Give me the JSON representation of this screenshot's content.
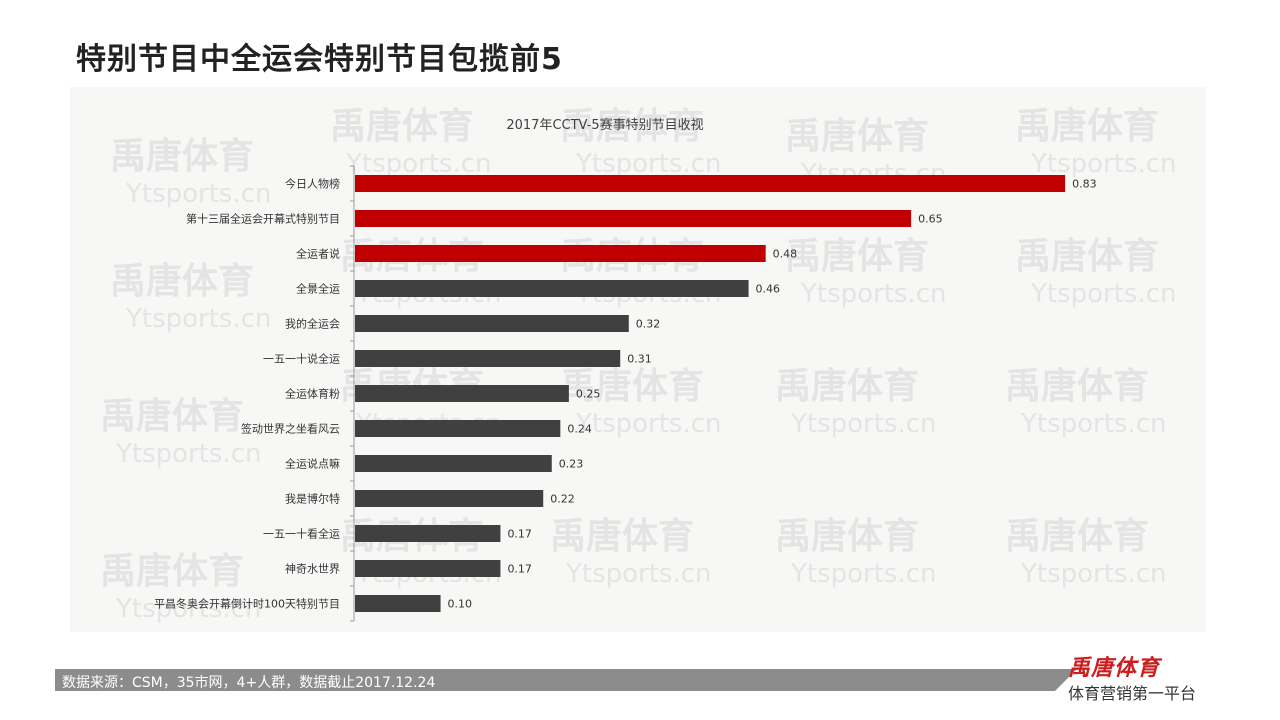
{
  "page": {
    "title": "特别节目中全运会特别节目包揽前5",
    "footer_source": "数据来源：CSM，35市网，4+人群，数据截止2017.12.24",
    "logo_text": "禹唐体育",
    "logo_tagline": "体育营销第一平台"
  },
  "watermark": {
    "cn": "禹唐体育",
    "en": "Ytsports.cn"
  },
  "colors": {
    "highlight": "#c00000",
    "normal": "#404040",
    "panel": "#f7f8f6"
  },
  "chart_data": {
    "type": "bar",
    "orientation": "horizontal",
    "title": "2017年CCTV-5赛事特别节目收视",
    "categories": [
      "今日人物榜",
      "第十三届全运会开幕式特别节目",
      "全运者说",
      "全景全运",
      "我的全运会",
      "一五一十说全运",
      "全运体育粉",
      "签动世界之坐看风云",
      "全运说点嘛",
      "我是博尔特",
      "一五一十看全运",
      "神奇水世界",
      "平昌冬奥会开幕倒计时100天特别节目"
    ],
    "values": [
      0.83,
      0.65,
      0.48,
      0.46,
      0.32,
      0.31,
      0.25,
      0.24,
      0.23,
      0.22,
      0.17,
      0.17,
      0.1
    ],
    "value_labels": [
      "0.83",
      "0.65",
      "0.48",
      "0.46",
      "0.32",
      "0.31",
      "0.25",
      "0.24",
      "0.23",
      "0.22",
      "0.17",
      "0.17",
      "0.10"
    ],
    "highlighted": [
      true,
      true,
      true,
      false,
      false,
      false,
      false,
      false,
      false,
      false,
      false,
      false,
      false
    ],
    "xlim": [
      0,
      0.9
    ],
    "grid": false,
    "legend": "none"
  }
}
